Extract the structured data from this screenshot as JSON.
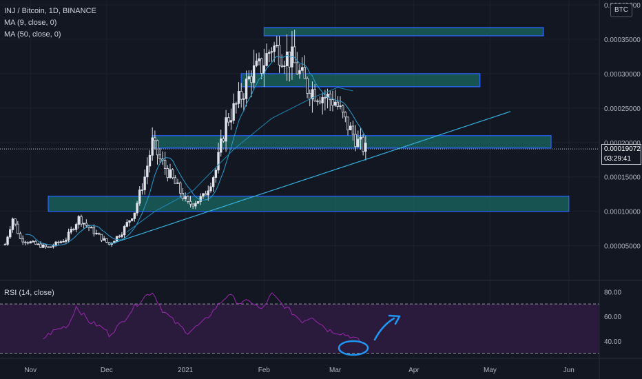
{
  "legend": {
    "symbol": "INJ / Bitcoin, 1D, BINANCE",
    "ma9": "MA (9, close, 0)",
    "ma50": "MA (50, close, 0)"
  },
  "quote_currency": "BTC",
  "current_price": {
    "value": "0.00019072",
    "countdown": "03:29:41"
  },
  "rsi_label": "RSI (14, close)",
  "colors": {
    "background": "#131722",
    "candle": "#e0e3eb",
    "ma9": "#2b9fd4",
    "ma50": "#1e88b5",
    "zone_fill": "#1a6a62",
    "zone_border": "#2962ff",
    "trendline": "#35b2e2",
    "rsi_line": "#9c27b0",
    "rsi_band": "#2a1b3d",
    "annotation": "#2196f3"
  },
  "chart_data": [
    {
      "type": "candlestick",
      "title": "INJ / Bitcoin, 1D, BINANCE",
      "ylim": [
        2.6e-06,
        0.0004
      ],
      "y_ticks": [
        "0.00005000",
        "0.00010000",
        "0.00015000",
        "0.00020000",
        "0.00025000",
        "0.00030000",
        "0.00035000",
        "0.00040000"
      ],
      "x_ticks": [
        "Nov",
        "Dec",
        "2021",
        "Feb",
        "Mar",
        "Apr",
        "May",
        "Jun"
      ],
      "close_path": [
        [
          "2020-10-22",
          5.2e-05
        ],
        [
          "2020-10-25",
          9e-05
        ],
        [
          "2020-10-28",
          6e-05
        ],
        [
          "2020-11-03",
          5.2e-05
        ],
        [
          "2020-11-08",
          4.7e-05
        ],
        [
          "2020-11-15",
          6e-05
        ],
        [
          "2020-11-20",
          9e-05
        ],
        [
          "2020-11-26",
          7e-05
        ],
        [
          "2020-12-02",
          5.2e-05
        ],
        [
          "2020-12-07",
          7e-05
        ],
        [
          "2020-12-12",
          0.0001
        ],
        [
          "2020-12-16",
          0.00015
        ],
        [
          "2020-12-19",
          0.0002
        ],
        [
          "2020-12-22",
          0.000175
        ],
        [
          "2020-12-28",
          0.00014
        ],
        [
          "2021-01-02",
          0.00011
        ],
        [
          "2021-01-08",
          0.00012
        ],
        [
          "2021-01-13",
          0.00016
        ],
        [
          "2021-01-17",
          0.00023
        ],
        [
          "2021-01-22",
          0.00026
        ],
        [
          "2021-01-27",
          0.0003
        ],
        [
          "2021-01-31",
          0.00031
        ],
        [
          "2021-02-04",
          0.00034
        ],
        [
          "2021-02-08",
          0.00033
        ],
        [
          "2021-02-12",
          0.00032
        ],
        [
          "2021-02-18",
          0.00028
        ],
        [
          "2021-02-23",
          0.00027
        ],
        [
          "2021-03-01",
          0.00026
        ],
        [
          "2021-03-05",
          0.00023
        ],
        [
          "2021-03-10",
          0.0002
        ],
        [
          "2021-03-13",
          0.00019
        ]
      ],
      "ma50_points": [
        [
          "2020-12-09",
          7e-05
        ],
        [
          "2020-12-20",
          0.0001
        ],
        [
          "2021-01-04",
          0.00013
        ],
        [
          "2021-01-20",
          0.00019
        ],
        [
          "2021-02-04",
          0.000235
        ],
        [
          "2021-02-20",
          0.000265
        ],
        [
          "2021-03-02",
          0.00028
        ],
        [
          "2021-03-08",
          0.000275
        ]
      ],
      "zones": [
        {
          "from": "2021-02-01",
          "to": "2021-05-22",
          "low": 0.000355,
          "high": 0.000367
        },
        {
          "from": "2021-01-23",
          "to": "2021-04-27",
          "low": 0.000281,
          "high": 0.0003
        },
        {
          "from": "2020-12-19",
          "to": "2021-05-25",
          "low": 0.000192,
          "high": 0.00021
        },
        {
          "from": "2020-11-08",
          "to": "2021-06-01",
          "low": 0.0001,
          "high": 0.000122
        }
      ],
      "trendline": {
        "from": [
          "2020-12-02",
          5.2e-05
        ],
        "to": [
          "2021-05-09",
          0.000245
        ]
      },
      "last_price": 0.00019072
    },
    {
      "type": "line",
      "title": "RSI (14, close)",
      "ylim": [
        27,
        88
      ],
      "y_ticks": [
        "40.00",
        "60.00",
        "80.00"
      ],
      "band": [
        30,
        70
      ],
      "series": [
        {
          "values": [
            [
              "2020-11-06",
              42
            ],
            [
              "2020-11-10",
              48
            ],
            [
              "2020-11-16",
              53
            ],
            [
              "2020-11-19",
              68
            ],
            [
              "2020-11-24",
              56
            ],
            [
              "2020-11-30",
              50
            ],
            [
              "2020-12-02",
              45
            ],
            [
              "2020-12-07",
              55
            ],
            [
              "2020-12-12",
              68
            ],
            [
              "2020-12-16",
              76
            ],
            [
              "2020-12-19",
              80
            ],
            [
              "2020-12-23",
              65
            ],
            [
              "2020-12-28",
              55
            ],
            [
              "2021-01-02",
              47
            ],
            [
              "2021-01-08",
              55
            ],
            [
              "2021-01-13",
              67
            ],
            [
              "2021-01-18",
              78
            ],
            [
              "2021-01-22",
              71
            ],
            [
              "2021-01-27",
              72
            ],
            [
              "2021-01-31",
              65
            ],
            [
              "2021-02-04",
              78
            ],
            [
              "2021-02-08",
              70
            ],
            [
              "2021-02-12",
              63
            ],
            [
              "2021-02-16",
              56
            ],
            [
              "2021-02-20",
              60
            ],
            [
              "2021-02-26",
              49
            ],
            [
              "2021-03-02",
              47
            ],
            [
              "2021-03-07",
              44
            ],
            [
              "2021-03-12",
              38
            ]
          ]
        }
      ]
    }
  ]
}
